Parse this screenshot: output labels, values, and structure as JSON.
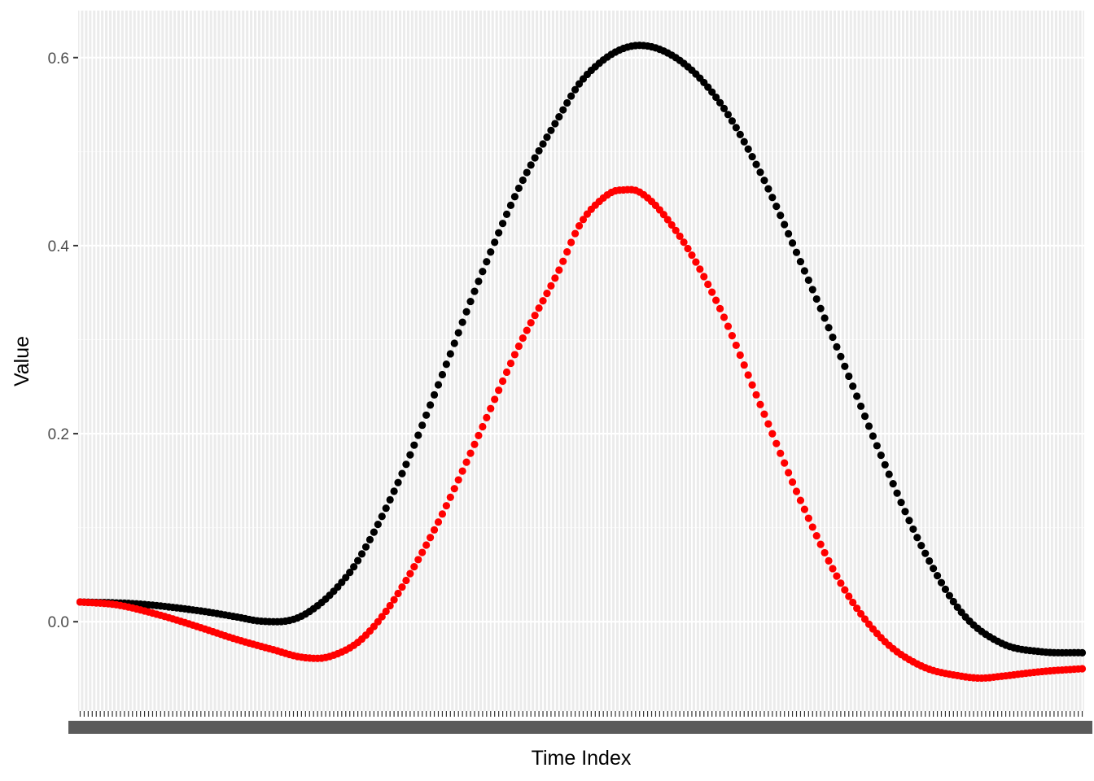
{
  "chart_data": {
    "type": "scatter",
    "title": "",
    "xlabel": "Time Index",
    "ylabel": "Value",
    "x_range": [
      1,
      250
    ],
    "ylim": [
      -0.095,
      0.65
    ],
    "y_ticks": [
      0.0,
      0.2,
      0.4,
      0.6
    ],
    "y_tick_labels": [
      "0.0",
      "0.2",
      "0.4",
      "0.6"
    ],
    "x_axis_note": "categorical time index; 250 overlapping tick labels rendered illegibly",
    "grid": true,
    "legend": "none",
    "series_colors": [
      "#000000",
      "#ff0000"
    ],
    "series": [
      {
        "color": "#000000",
        "anchors_x": [
          1,
          15,
          30,
          40,
          45,
          50,
          55,
          60,
          65,
          70,
          80,
          90,
          100,
          110,
          120,
          125,
          130,
          135,
          140,
          150,
          160,
          170,
          180,
          190,
          200,
          210,
          220,
          230,
          240,
          250
        ],
        "anchors_y": [
          0.021,
          0.019,
          0.012,
          0.005,
          0.001,
          0.0,
          0.004,
          0.017,
          0.037,
          0.065,
          0.148,
          0.252,
          0.362,
          0.461,
          0.537,
          0.572,
          0.594,
          0.608,
          0.613,
          0.597,
          0.552,
          0.478,
          0.383,
          0.282,
          0.177,
          0.081,
          0.01,
          -0.023,
          -0.032,
          -0.033
        ]
      },
      {
        "color": "#ff0000",
        "anchors_x": [
          1,
          10,
          20,
          30,
          40,
          50,
          55,
          60,
          65,
          70,
          75,
          80,
          90,
          100,
          110,
          120,
          125,
          130,
          135,
          140,
          150,
          160,
          170,
          180,
          190,
          200,
          210,
          220,
          225,
          230,
          240,
          250
        ],
        "anchors_y": [
          0.021,
          0.018,
          0.008,
          -0.005,
          -0.019,
          -0.031,
          -0.037,
          -0.039,
          -0.034,
          -0.022,
          0.0,
          0.03,
          0.106,
          0.198,
          0.293,
          0.374,
          0.421,
          0.447,
          0.459,
          0.457,
          0.41,
          0.333,
          0.231,
          0.129,
          0.041,
          -0.017,
          -0.047,
          -0.058,
          -0.06,
          -0.058,
          -0.053,
          -0.05
        ]
      }
    ]
  }
}
